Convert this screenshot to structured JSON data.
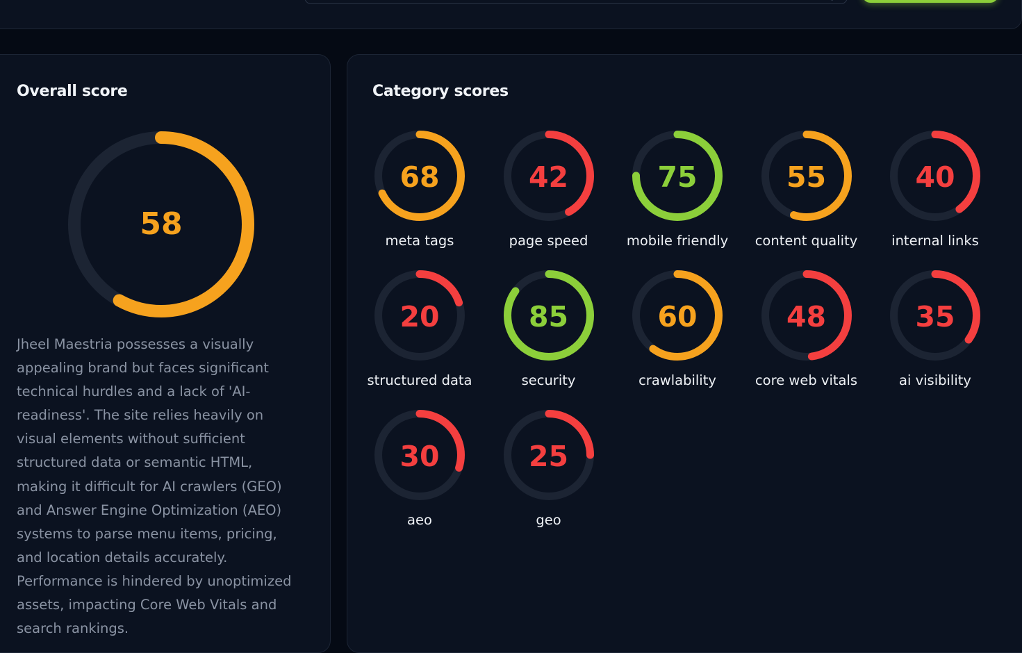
{
  "colors": {
    "good": "#8ccf3a",
    "average": "#f6a21e",
    "poor": "#f43f3f",
    "track": "#1c2433"
  },
  "overall": {
    "title": "Overall score",
    "score": 58,
    "status": "average",
    "summary": "Jheel Maestria possesses a visually appealing brand but faces significant technical hurdles and a lack of 'AI-readiness'. The site relies heavily on visual elements without sufficient structured data or semantic HTML, making it difficult for AI crawlers (GEO) and Answer Engine Optimization (AEO) systems to parse menu items, pricing, and location details accurately. Performance is hindered by unoptimized assets, impacting Core Web Vitals and search rankings."
  },
  "categories": {
    "title": "Category scores",
    "items": [
      {
        "label": "meta tags",
        "score": 68,
        "status": "average"
      },
      {
        "label": "page speed",
        "score": 42,
        "status": "poor"
      },
      {
        "label": "mobile friendly",
        "score": 75,
        "status": "good"
      },
      {
        "label": "content quality",
        "score": 55,
        "status": "average"
      },
      {
        "label": "internal links",
        "score": 40,
        "status": "poor"
      },
      {
        "label": "structured data",
        "score": 20,
        "status": "poor"
      },
      {
        "label": "security",
        "score": 85,
        "status": "good"
      },
      {
        "label": "crawlability",
        "score": 60,
        "status": "average"
      },
      {
        "label": "core web vitals",
        "score": 48,
        "status": "poor"
      },
      {
        "label": "ai visibility",
        "score": 35,
        "status": "poor"
      },
      {
        "label": "aeo",
        "score": 30,
        "status": "poor"
      },
      {
        "label": "geo",
        "score": 25,
        "status": "poor"
      }
    ]
  }
}
